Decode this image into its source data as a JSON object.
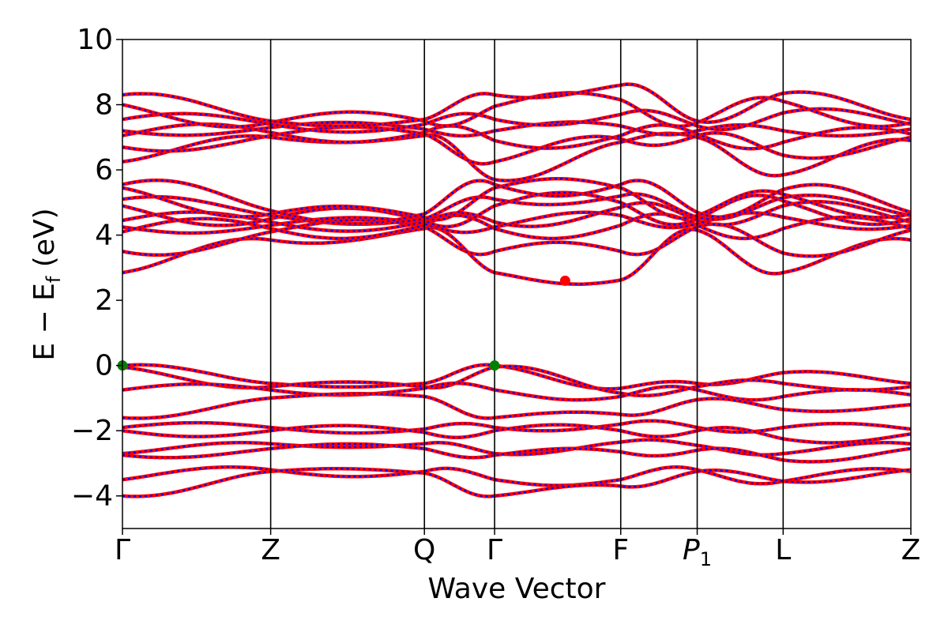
{
  "chart_data": {
    "type": "line",
    "title": "",
    "xlabel": "Wave Vector",
    "ylabel_parts": {
      "main": "E − E",
      "sub": "f",
      "unit": " (eV)"
    },
    "ylim": [
      -5,
      10
    ],
    "yticks": [
      -4,
      -2,
      0,
      2,
      4,
      6,
      8,
      10
    ],
    "ytick_labels": [
      "−4",
      "−2",
      "0",
      "2",
      "4",
      "6",
      "8",
      "10"
    ],
    "xlim": [
      0,
      1
    ],
    "kpoints": [
      {
        "label": "Γ",
        "x": 0.0
      },
      {
        "label": "Z",
        "x": 0.188
      },
      {
        "label": "Q",
        "x": 0.383
      },
      {
        "label": "Γ",
        "x": 0.472
      },
      {
        "label": "F",
        "x": 0.632
      },
      {
        "label": "P",
        "sub": "1",
        "x": 0.729
      },
      {
        "label": "L",
        "x": 0.838
      },
      {
        "label": "Z",
        "x": 1.0
      }
    ],
    "series_styles": [
      {
        "color": "#ff0000",
        "style": "solid"
      },
      {
        "color": "#0000ff",
        "style": "dotted"
      }
    ],
    "bands_at_kpoints": {
      "conduction": [
        [
          2.85,
          3.85,
          4.2,
          2.85,
          2.62,
          4.15,
          2.85,
          3.85
        ],
        [
          3.5,
          4.1,
          4.25,
          3.5,
          3.5,
          4.25,
          3.45,
          4.15
        ],
        [
          4.1,
          4.2,
          4.3,
          4.2,
          4.3,
          4.3,
          4.2,
          4.2
        ],
        [
          4.25,
          4.3,
          4.35,
          4.25,
          4.6,
          4.35,
          4.55,
          4.3
        ],
        [
          4.45,
          4.4,
          4.4,
          4.4,
          4.85,
          4.45,
          4.9,
          4.4
        ],
        [
          4.9,
          4.5,
          4.45,
          4.9,
          5.0,
          4.5,
          5.05,
          4.5
        ],
        [
          5.1,
          4.6,
          4.5,
          5.1,
          5.2,
          4.55,
          5.15,
          4.6
        ],
        [
          5.45,
          4.65,
          4.55,
          5.45,
          5.45,
          4.6,
          5.25,
          4.65
        ],
        [
          5.55,
          4.75,
          4.65,
          5.55,
          5.55,
          4.7,
          5.4,
          4.7
        ]
      ],
      "upper": [
        [
          6.25,
          7.0,
          7.05,
          5.7,
          6.85,
          7.0,
          5.85,
          6.9
        ],
        [
          6.7,
          7.05,
          7.1,
          6.25,
          6.95,
          7.05,
          6.45,
          7.0
        ],
        [
          7.05,
          7.15,
          7.15,
          6.9,
          7.05,
          7.1,
          6.85,
          7.1
        ],
        [
          7.2,
          7.3,
          7.25,
          7.2,
          7.35,
          7.2,
          7.2,
          7.25
        ],
        [
          7.55,
          7.4,
          7.4,
          7.55,
          7.7,
          7.35,
          7.75,
          7.4
        ],
        [
          8.0,
          7.45,
          7.5,
          7.95,
          8.15,
          7.45,
          8.1,
          7.45
        ],
        [
          8.3,
          7.5,
          7.55,
          8.3,
          8.6,
          7.5,
          8.35,
          7.55
        ]
      ],
      "valence": [
        [
          0.0,
          -0.55,
          -0.55,
          0.0,
          -0.7,
          -0.55,
          -0.22,
          -0.55
        ],
        [
          -0.05,
          -0.65,
          -0.65,
          -0.05,
          -0.85,
          -0.65,
          -0.55,
          -0.65
        ],
        [
          -0.75,
          -0.75,
          -0.7,
          -0.75,
          -0.95,
          -0.75,
          -0.95,
          -0.9
        ],
        [
          -1.6,
          -1.0,
          -0.95,
          -1.6,
          -1.5,
          -1.05,
          -1.35,
          -1.2
        ],
        [
          -1.9,
          -1.9,
          -1.95,
          -1.9,
          -1.8,
          -1.9,
          -1.9,
          -1.95
        ],
        [
          -2.0,
          -2.0,
          -2.05,
          -2.0,
          -2.0,
          -2.0,
          -2.25,
          -2.1
        ],
        [
          -2.7,
          -2.4,
          -2.4,
          -2.7,
          -2.35,
          -2.45,
          -2.7,
          -2.4
        ],
        [
          -2.75,
          -2.55,
          -2.55,
          -2.75,
          -2.65,
          -2.6,
          -2.9,
          -2.55
        ],
        [
          -3.5,
          -3.2,
          -3.25,
          -3.5,
          -3.5,
          -3.2,
          -3.55,
          -3.25
        ],
        [
          -4.0,
          -3.25,
          -3.3,
          -4.0,
          -3.7,
          -3.25,
          -3.55,
          -3.2
        ]
      ]
    },
    "markers": [
      {
        "name": "vbm-marker-gamma-1",
        "x": 0.0,
        "y": 0.0,
        "color": "#008000"
      },
      {
        "name": "vbm-marker-gamma-2",
        "x": 0.472,
        "y": 0.0,
        "color": "#008000"
      },
      {
        "name": "cbm-marker",
        "x": 0.5615,
        "y": 2.6,
        "color": "#ff0000"
      }
    ]
  }
}
